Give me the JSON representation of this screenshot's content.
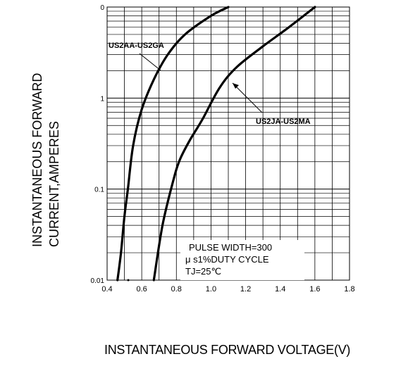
{
  "chart_data": {
    "type": "line",
    "xlabel": "INSTANTANEOUS FORWARD VOLTAGE(V)",
    "ylabel_lines": [
      "INSTANTANEOUS FORWARD",
      "CURRENT,AMPERES"
    ],
    "x_ticks": [
      "0.4",
      "0.6",
      "0.8",
      "1.0",
      "1.2",
      "1.4",
      "1.6",
      "1.8"
    ],
    "y_ticks": [
      "0.01",
      "0.1",
      "1",
      "0"
    ],
    "xlim": [
      0.4,
      1.8
    ],
    "ylim": [
      0.01,
      10
    ],
    "y_scale": "log",
    "grid": true,
    "series": [
      {
        "name": "US2AA-US2GA",
        "points": [
          [
            0.46,
            0.01
          ],
          [
            0.48,
            0.02
          ],
          [
            0.5,
            0.05
          ],
          [
            0.52,
            0.1
          ],
          [
            0.55,
            0.3
          ],
          [
            0.6,
            0.75
          ],
          [
            0.67,
            1.6
          ],
          [
            0.75,
            3.0
          ],
          [
            0.85,
            5.0
          ],
          [
            1.0,
            8.0
          ],
          [
            1.1,
            10.0
          ]
        ]
      },
      {
        "name": "US2JA-US2MA",
        "points": [
          [
            0.67,
            0.01
          ],
          [
            0.72,
            0.04
          ],
          [
            0.78,
            0.12
          ],
          [
            0.82,
            0.21
          ],
          [
            0.88,
            0.35
          ],
          [
            0.95,
            0.58
          ],
          [
            1.05,
            1.3
          ],
          [
            1.15,
            2.2
          ],
          [
            1.3,
            3.7
          ],
          [
            1.45,
            6.0
          ],
          [
            1.6,
            10.0
          ]
        ]
      }
    ],
    "annotations": [
      "PULSE WIDTH=300",
      "μ s1%DUTY CYCLE",
      "TJ=25℃"
    ]
  }
}
